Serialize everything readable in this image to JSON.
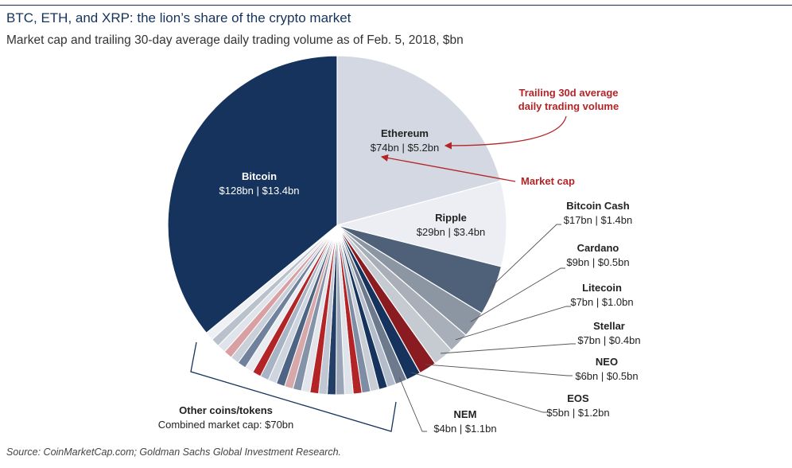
{
  "title": "BTC, ETH, and XRP: the lion’s share of the crypto market",
  "subtitle": "Market cap and trailing 30-day average daily trading volume as of Feb. 5, 2018, $bn",
  "source": "Source: CoinMarketCap.com; Goldman Sachs Global Investment Research.",
  "annotations": {
    "volume_note": [
      "Trailing 30d average",
      "daily trading volume"
    ],
    "market_cap_note": "Market cap"
  },
  "colors": {
    "navy": "#15335c",
    "red_accent": "#b32427",
    "pie_stroke": "#ffffff",
    "leader": "#555555"
  },
  "chart_data": {
    "type": "pie",
    "unit": "$bn",
    "slices": [
      {
        "name": "Ethereum",
        "market_cap": 74,
        "volume": 5.2,
        "label": "$74bn | $5.2bn",
        "color": "#d3d8e2"
      },
      {
        "name": "Ripple",
        "market_cap": 29,
        "volume": 3.4,
        "label": "$29bn | $3.4bn",
        "color": "#eceef3"
      },
      {
        "name": "Bitcoin Cash",
        "market_cap": 17,
        "volume": 1.4,
        "label": "$17bn | $1.4bn",
        "color": "#4f6079"
      },
      {
        "name": "Cardano",
        "market_cap": 9,
        "volume": 0.5,
        "label": "$9bn | $0.5bn",
        "color": "#8c95a2"
      },
      {
        "name": "Litecoin",
        "market_cap": 7,
        "volume": 1.0,
        "label": "$7bn | $1.0bn",
        "color": "#a9afb9"
      },
      {
        "name": "Stellar",
        "market_cap": 7,
        "volume": 0.4,
        "label": "$7bn | $0.4bn",
        "color": "#c6cad1"
      },
      {
        "name": "NEO",
        "market_cap": 6,
        "volume": 0.5,
        "label": "$6bn | $0.5bn",
        "color": "#8a1c21"
      },
      {
        "name": "EOS",
        "market_cap": 5,
        "volume": 1.2,
        "label": "$5bn | $1.2bn",
        "color": "#15335c"
      },
      {
        "name": "NEM",
        "market_cap": 4,
        "volume": 1.1,
        "label": "$4bn | $1.1bn",
        "color": "#6d7a8d"
      },
      {
        "name": "Other coins/tokens",
        "market_cap": 70,
        "label": "Combined market cap: $70bn",
        "colors": [
          "#b3bccb",
          "#15335c",
          "#c8cdd6",
          "#7e8da3",
          "#b32427",
          "#dfe3ea",
          "#9aa6b8",
          "#243f66",
          "#c0c7d2",
          "#b32427",
          "#e2e6ec",
          "#8593a8",
          "#d7a8aa",
          "#4e6485",
          "#cfd5de",
          "#a8b3c3",
          "#b32427",
          "#e9ecf0",
          "#6f819c",
          "#c9d0da",
          "#d9a0a3",
          "#dfe3ea",
          "#b9c1cd",
          "#eef0f3"
        ]
      },
      {
        "name": "Bitcoin",
        "market_cap": 128,
        "volume": 13.4,
        "label": "$128bn | $13.4bn",
        "color": "#15335c"
      }
    ]
  }
}
